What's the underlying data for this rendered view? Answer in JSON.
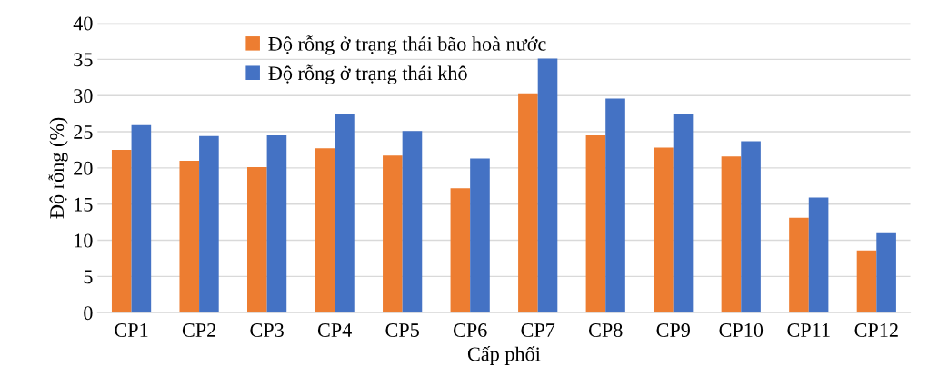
{
  "chart_data": {
    "type": "bar",
    "xlabel": "Cấp phối",
    "ylabel": "Độ rỗng (%)",
    "categories": [
      "CP1",
      "CP2",
      "CP3",
      "CP4",
      "CP5",
      "CP6",
      "CP7",
      "CP8",
      "CP9",
      "CP10",
      "CP11",
      "CP12"
    ],
    "series": [
      {
        "name": "Độ rỗng ở trạng thái bão hoà nước",
        "color": "#ed7d31",
        "values": [
          22.5,
          21.0,
          20.1,
          22.7,
          21.7,
          17.2,
          30.3,
          24.5,
          22.8,
          21.6,
          13.1,
          8.6
        ]
      },
      {
        "name": "Độ rỗng ở trạng thái khô",
        "color": "#4472c4",
        "values": [
          25.9,
          24.4,
          24.5,
          27.4,
          25.1,
          21.3,
          35.1,
          29.6,
          27.4,
          23.7,
          15.9,
          11.1
        ]
      }
    ],
    "ylim": [
      0,
      40
    ],
    "yticks": [
      0,
      5,
      10,
      15,
      20,
      25,
      30,
      35,
      40
    ],
    "grid": "y",
    "legend": "top left"
  }
}
